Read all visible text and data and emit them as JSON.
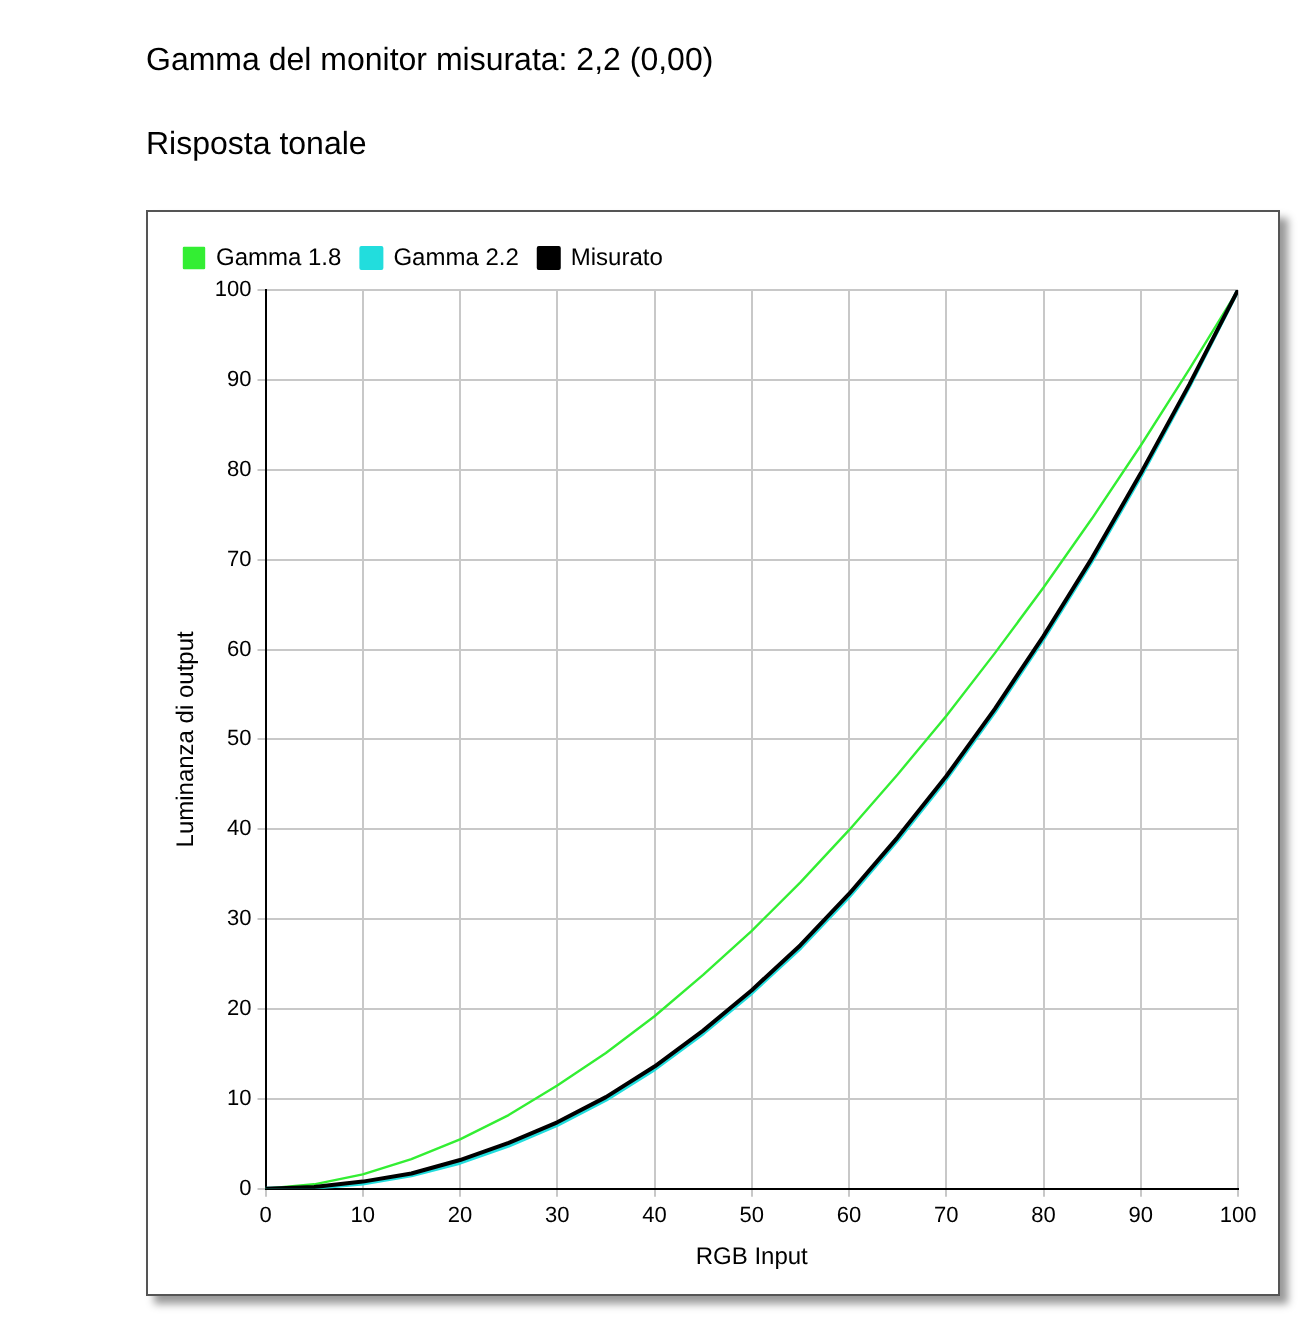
{
  "chart_data": {
    "type": "line",
    "title": "Gamma del monitor misurata: 2,2 (0,00)",
    "subtitle": "Risposta tonale",
    "xlabel": "RGB Input",
    "ylabel": "Luminanza di output",
    "x": [
      0,
      5,
      10,
      15,
      20,
      25,
      30,
      35,
      40,
      45,
      50,
      55,
      60,
      65,
      70,
      75,
      80,
      85,
      90,
      95,
      100
    ],
    "series": [
      {
        "name": "Gamma 1.8",
        "color": "#33ee33",
        "values": [
          0,
          0.5,
          1.6,
          3.3,
          5.5,
          8.2,
          11.5,
          15.1,
          19.2,
          23.8,
          28.7,
          34.1,
          39.9,
          46.1,
          52.6,
          59.6,
          66.9,
          74.6,
          82.7,
          91.2,
          100
        ]
      },
      {
        "name": "Gamma 2.2",
        "color": "#22dddd",
        "values": [
          0,
          0.1,
          0.6,
          1.5,
          2.9,
          4.8,
          7.1,
          9.9,
          13.3,
          17.3,
          21.8,
          26.8,
          32.5,
          38.8,
          45.6,
          53.1,
          61.2,
          69.9,
          79.3,
          89.3,
          100
        ]
      },
      {
        "name": "Misurato",
        "color": "#000000",
        "values": [
          0,
          0.2,
          0.8,
          1.7,
          3.2,
          5.1,
          7.4,
          10.2,
          13.6,
          17.6,
          22.1,
          27.1,
          32.8,
          39.1,
          45.9,
          53.4,
          61.5,
          70.2,
          79.6,
          89.5,
          100
        ]
      }
    ],
    "xlim": [
      0,
      100
    ],
    "xticks": [
      0,
      10,
      20,
      30,
      40,
      50,
      60,
      70,
      80,
      90,
      100
    ],
    "ylim": [
      0,
      100
    ],
    "yticks": [
      0,
      10,
      20,
      30,
      40,
      50,
      60,
      70,
      80,
      90,
      100
    ],
    "grid": true,
    "legend": "top left",
    "marker": "none",
    "line_style": "solid"
  }
}
